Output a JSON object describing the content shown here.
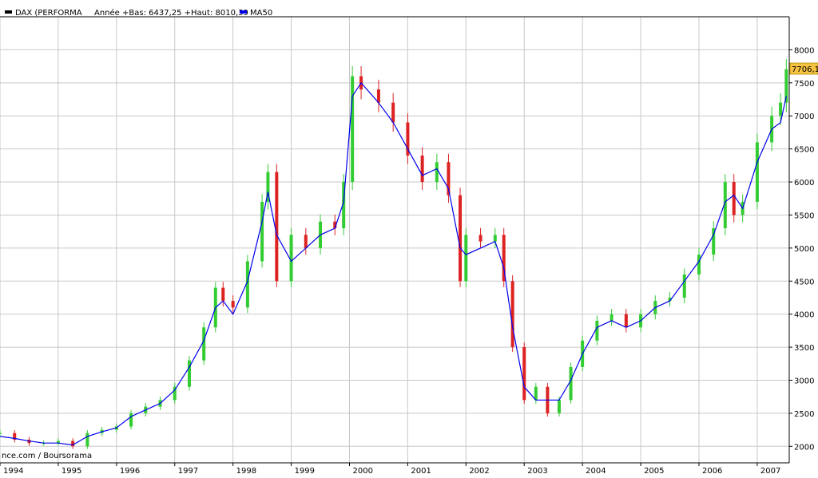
{
  "legend": {
    "series_label": "DAX (PERFORMA",
    "stats_label": "Année +Bas: 6437,25 +Haut: 8010,39",
    "ma_label": "MA50"
  },
  "current_price_label": "7706,1",
  "source_label": "nce.com / Boursorama",
  "colors": {
    "up_candle": "#33cc33",
    "down_candle": "#dd2222",
    "ma_line": "#0000ee",
    "price_badge": "#f5c242",
    "grid": "#c8c8c8"
  },
  "chart_data": {
    "type": "line",
    "title": "",
    "xlabel": "",
    "ylabel": "",
    "x_ticks": [
      "1994",
      "1995",
      "1996",
      "1997",
      "1998",
      "1999",
      "2000",
      "2001",
      "2002",
      "2003",
      "2004",
      "2005",
      "2006",
      "2007"
    ],
    "y_ticks": [
      2000,
      2500,
      3000,
      3500,
      4000,
      4500,
      5000,
      5500,
      6000,
      6500,
      7000,
      7500,
      8000
    ],
    "xlim": [
      1994.0,
      2007.55
    ],
    "ylim": [
      1750,
      8500
    ],
    "grid": true,
    "legend_position": "top-left",
    "series": [
      {
        "name": "DAX (PERFORMA",
        "style": "candlestick",
        "x": [
          1994.0,
          1994.25,
          1994.5,
          1994.75,
          1995.0,
          1995.25,
          1995.5,
          1995.75,
          1996.0,
          1996.25,
          1996.5,
          1996.75,
          1997.0,
          1997.25,
          1997.5,
          1997.7,
          1997.83,
          1998.0,
          1998.25,
          1998.5,
          1998.6,
          1998.75,
          1999.0,
          1999.25,
          1999.5,
          1999.75,
          1999.9,
          2000.05,
          2000.2,
          2000.5,
          2000.75,
          2001.0,
          2001.25,
          2001.5,
          2001.7,
          2001.9,
          2002.0,
          2002.25,
          2002.5,
          2002.65,
          2002.8,
          2003.0,
          2003.2,
          2003.4,
          2003.6,
          2003.8,
          2004.0,
          2004.25,
          2004.5,
          2004.75,
          2005.0,
          2005.25,
          2005.5,
          2005.75,
          2006.0,
          2006.25,
          2006.45,
          2006.6,
          2006.75,
          2007.0,
          2007.25,
          2007.4,
          2007.5
        ],
        "values": [
          2200,
          2100,
          2050,
          2050,
          2080,
          2000,
          2200,
          2250,
          2300,
          2500,
          2600,
          2700,
          2900,
          3300,
          3800,
          4400,
          4200,
          4100,
          4800,
          5700,
          6150,
          4500,
          5200,
          5000,
          5400,
          5300,
          6000,
          7600,
          7400,
          7200,
          6900,
          6400,
          6000,
          6300,
          5800,
          4500,
          5200,
          5100,
          5200,
          4500,
          3500,
          2700,
          2900,
          2500,
          2700,
          3200,
          3600,
          3900,
          4000,
          3800,
          4000,
          4200,
          4250,
          4600,
          4900,
          5300,
          6000,
          5500,
          5700,
          6600,
          7000,
          7200,
          7706
        ]
      },
      {
        "name": "MA50",
        "style": "line",
        "x": [
          1994.0,
          1994.25,
          1994.5,
          1994.75,
          1995.0,
          1995.25,
          1995.5,
          1995.75,
          1996.0,
          1996.25,
          1996.5,
          1996.75,
          1997.0,
          1997.25,
          1997.5,
          1997.7,
          1997.83,
          1998.0,
          1998.25,
          1998.5,
          1998.6,
          1998.75,
          1999.0,
          1999.25,
          1999.5,
          1999.75,
          1999.9,
          2000.05,
          2000.2,
          2000.5,
          2000.75,
          2001.0,
          2001.25,
          2001.5,
          2001.7,
          2001.9,
          2002.0,
          2002.25,
          2002.5,
          2002.65,
          2002.8,
          2003.0,
          2003.2,
          2003.4,
          2003.6,
          2003.8,
          2004.0,
          2004.25,
          2004.5,
          2004.75,
          2005.0,
          2005.25,
          2005.5,
          2005.75,
          2006.0,
          2006.25,
          2006.45,
          2006.6,
          2006.75,
          2007.0,
          2007.25,
          2007.4,
          2007.5
        ],
        "values": [
          2150,
          2120,
          2080,
          2050,
          2050,
          2020,
          2150,
          2220,
          2280,
          2450,
          2550,
          2650,
          2850,
          3200,
          3600,
          4100,
          4200,
          4000,
          4500,
          5400,
          5850,
          5200,
          4800,
          5000,
          5200,
          5300,
          5700,
          7300,
          7500,
          7200,
          6900,
          6500,
          6100,
          6200,
          5900,
          5000,
          4900,
          5000,
          5100,
          4700,
          3800,
          2900,
          2700,
          2700,
          2700,
          3000,
          3400,
          3800,
          3900,
          3800,
          3900,
          4100,
          4200,
          4500,
          4800,
          5200,
          5700,
          5800,
          5600,
          6300,
          6800,
          6900,
          7300
        ]
      }
    ]
  }
}
